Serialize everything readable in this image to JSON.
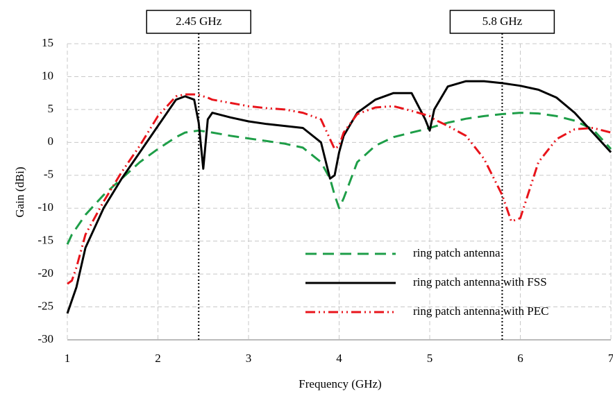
{
  "chart_data": {
    "type": "line",
    "xlabel": "Frequency (GHz)",
    "ylabel": "Gain (dBi)",
    "x": [
      1,
      1.05,
      1.1,
      1.2,
      1.4,
      1.6,
      1.8,
      2.0,
      2.2,
      2.3,
      2.4,
      2.45,
      2.5,
      2.55,
      2.6,
      2.8,
      3.0,
      3.2,
      3.4,
      3.6,
      3.8,
      3.9,
      3.95,
      4.0,
      4.05,
      4.2,
      4.4,
      4.6,
      4.8,
      4.95,
      5.0,
      5.05,
      5.2,
      5.4,
      5.6,
      5.8,
      5.9,
      6.0,
      6.2,
      6.4,
      6.6,
      6.8,
      7.0
    ],
    "series": [
      {
        "name": "ring patch antenna",
        "color": "#1e9e48",
        "dash": "dashed",
        "values": [
          -15.5,
          -14,
          -13,
          -11,
          -8,
          -5.5,
          -3,
          -1,
          0.8,
          1.5,
          1.7,
          1.8,
          1.7,
          1.6,
          1.5,
          1.0,
          0.6,
          0.2,
          -0.2,
          -0.8,
          -3,
          -5.5,
          -8,
          -10,
          -8.5,
          -3,
          -0.5,
          0.8,
          1.5,
          2,
          2.2,
          2.4,
          3,
          3.6,
          4,
          4.3,
          4.4,
          4.5,
          4.4,
          4,
          3.3,
          2,
          -1
        ]
      },
      {
        "name": "ring patch antenna with FSS",
        "color": "#000000",
        "dash": "solid",
        "values": [
          -26,
          -24,
          -22,
          -16,
          -10,
          -5.5,
          -1.5,
          2.5,
          6.5,
          7,
          6.5,
          3,
          -4,
          3.5,
          4.5,
          3.8,
          3.2,
          2.8,
          2.5,
          2.2,
          0,
          -5.5,
          -5,
          -1.5,
          1,
          4.5,
          6.5,
          7.5,
          7.5,
          3.5,
          1.8,
          5,
          8.5,
          9.3,
          9.3,
          9,
          8.8,
          8.6,
          8,
          6.8,
          4.5,
          1.5,
          -1.5
        ]
      },
      {
        "name": "ring patch antenna with PEC",
        "color": "#e8141b",
        "dash": "dashdotdot",
        "values": [
          -21.5,
          -21,
          -19,
          -14,
          -9,
          -4.5,
          -0.5,
          4,
          7,
          7.3,
          7.3,
          7.2,
          7,
          6.8,
          6.5,
          6,
          5.5,
          5.2,
          5,
          4.5,
          3.5,
          0.5,
          -1,
          -0.5,
          1.5,
          4.3,
          5.3,
          5.5,
          4.8,
          4.2,
          4,
          3.5,
          2.5,
          1,
          -2.5,
          -8,
          -12,
          -11.5,
          -3,
          0.5,
          2,
          2.2,
          1.5
        ]
      }
    ],
    "xlim": [
      1,
      7
    ],
    "ylim": [
      -30,
      15
    ],
    "xticks": [
      1,
      2,
      3,
      4,
      5,
      6,
      7
    ],
    "yticks": [
      15,
      10,
      5,
      0,
      -5,
      -10,
      -15,
      -20,
      -25,
      -30
    ],
    "grid": true,
    "legend": "lower right",
    "annotations": [
      {
        "text": "2.45 GHz",
        "x": 2.45
      },
      {
        "text": "5.8 GHz",
        "x": 5.8
      }
    ]
  }
}
